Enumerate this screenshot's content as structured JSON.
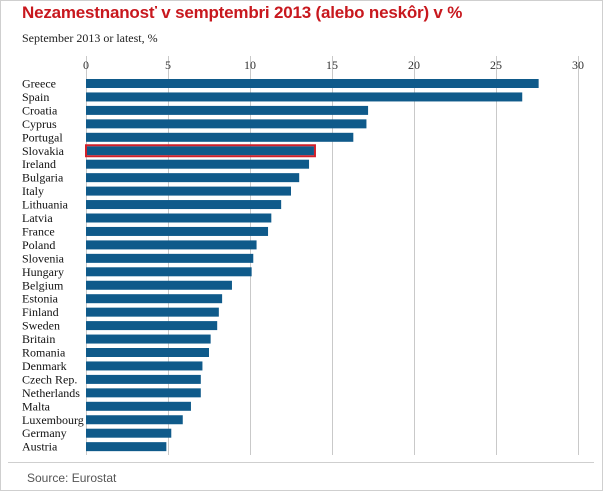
{
  "title": "Nezamestnanosť v semptembri 2013 (alebo neskôr) v %",
  "subtitle": "September 2013 or latest, %",
  "source": "Source: Eurostat",
  "colors": {
    "bar": "#0f5a8a",
    "highlight": "#d0202a",
    "title": "#c8181e",
    "grid": "#c9c9c9"
  },
  "chart_data": {
    "type": "bar",
    "orientation": "horizontal",
    "title": "Nezamestnanosť v semptembri 2013 (alebo neskôr) v %",
    "subtitle": "September 2013 or latest, %",
    "xlim": [
      0,
      30
    ],
    "xticks": [
      0,
      5,
      10,
      15,
      20,
      25,
      30
    ],
    "grid": true,
    "highlight": "Slovakia",
    "categories": [
      "Greece",
      "Spain",
      "Croatia",
      "Cyprus",
      "Portugal",
      "Slovakia",
      "Ireland",
      "Bulgaria",
      "Italy",
      "Lithuania",
      "Latvia",
      "France",
      "Poland",
      "Slovenia",
      "Hungary",
      "Belgium",
      "Estonia",
      "Finland",
      "Sweden",
      "Britain",
      "Romania",
      "Denmark",
      "Czech Rep.",
      "Netherlands",
      "Malta",
      "Luxembourg",
      "Germany",
      "Austria"
    ],
    "values": [
      27.6,
      26.6,
      17.2,
      17.1,
      16.3,
      13.9,
      13.6,
      13.0,
      12.5,
      11.9,
      11.3,
      11.1,
      10.4,
      10.2,
      10.1,
      8.9,
      8.3,
      8.1,
      8.0,
      7.6,
      7.5,
      7.1,
      7.0,
      7.0,
      6.4,
      5.9,
      5.2,
      4.9
    ]
  }
}
